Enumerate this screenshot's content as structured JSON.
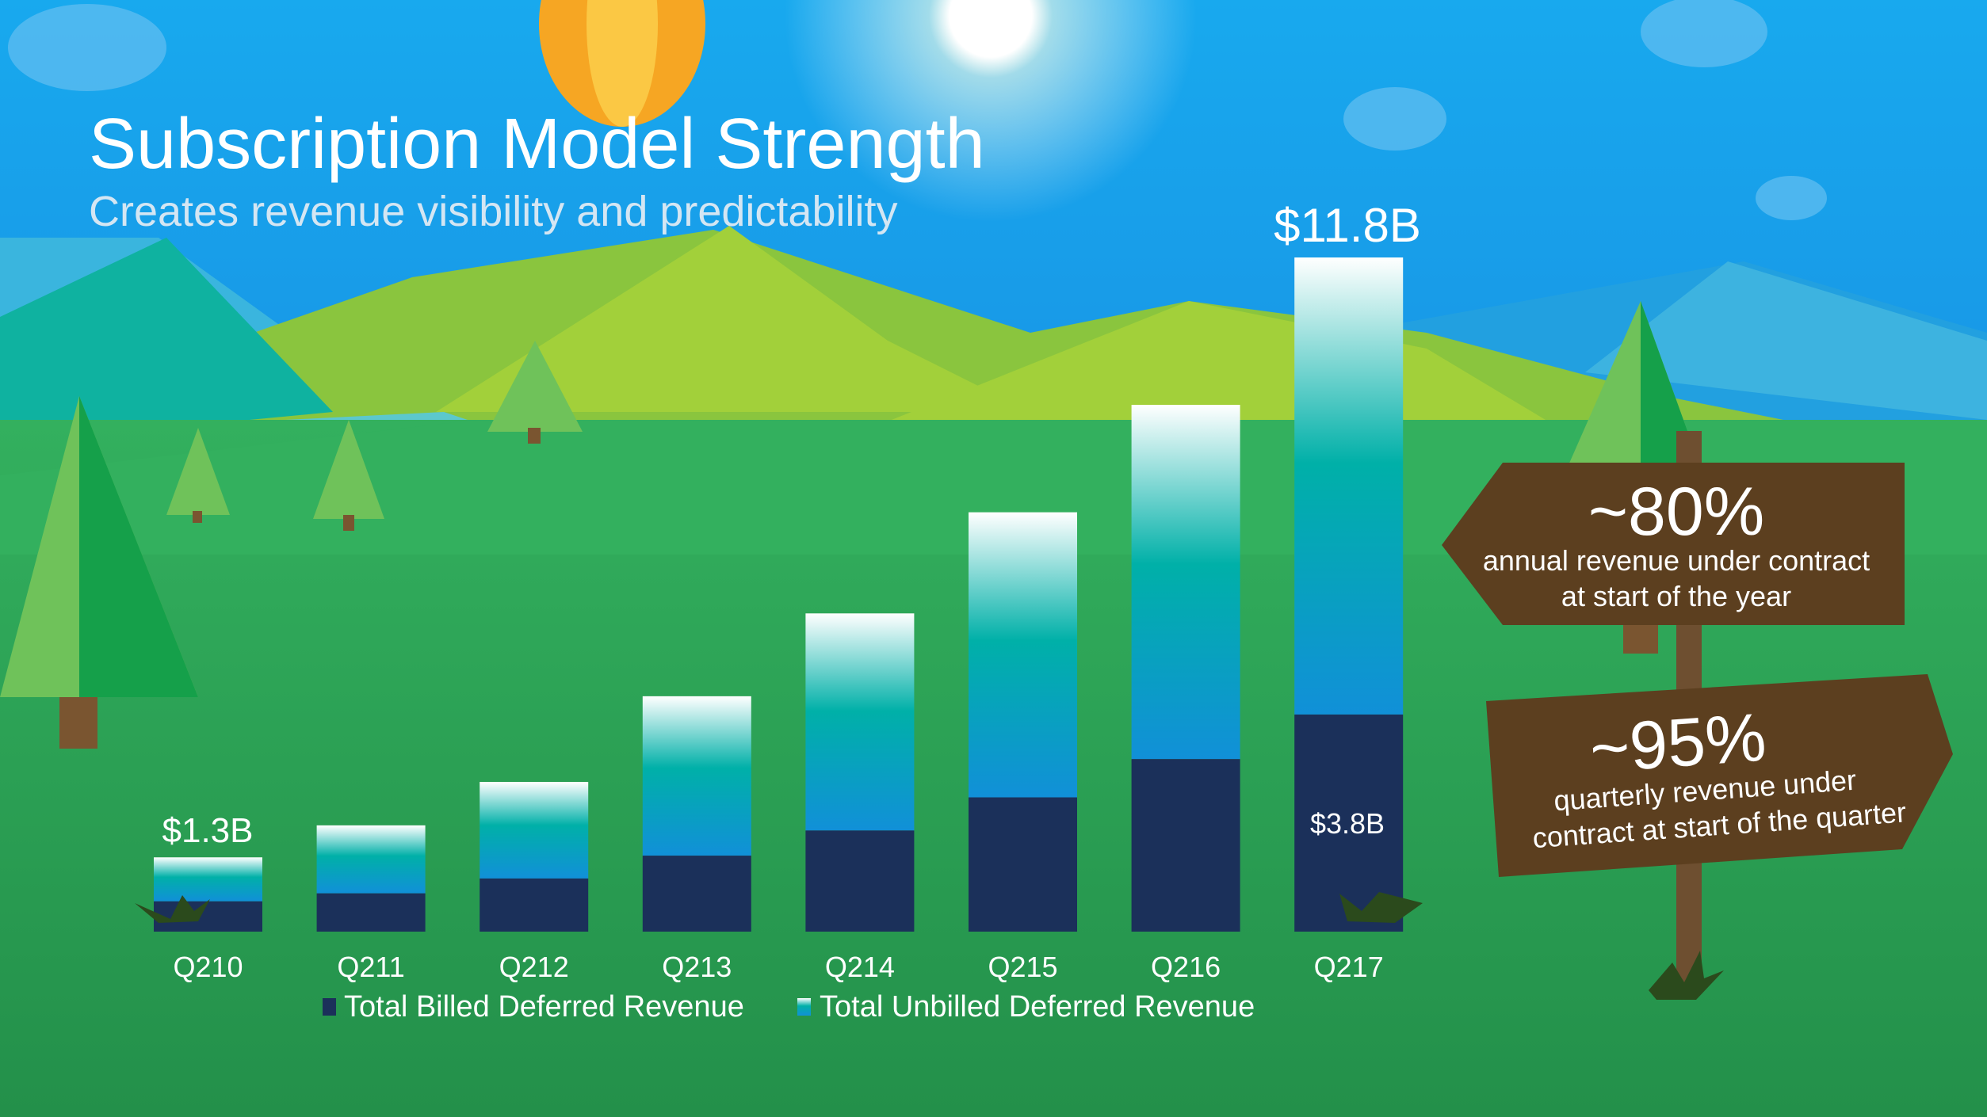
{
  "slide": {
    "title": "Subscription Model Strength",
    "subtitle": "Creates revenue visibility and predictability"
  },
  "chart_data": {
    "type": "bar",
    "stacked": true,
    "categories": [
      "Q210",
      "Q211",
      "Q212",
      "Q213",
      "Q214",
      "Q215",
      "Q216",
      "Q217"
    ],
    "series": [
      {
        "name": "Total Billed Deferred Revenue",
        "values": [
          0.53,
          0.67,
          0.93,
          1.33,
          1.77,
          2.35,
          3.02,
          3.8
        ]
      },
      {
        "name": "Total Unbilled Deferred Revenue",
        "values": [
          0.77,
          1.19,
          1.69,
          2.79,
          3.8,
          4.99,
          6.2,
          8.0
        ]
      }
    ],
    "units": "$B",
    "ylim": [
      0,
      11.8
    ],
    "grid": false,
    "legend": "bottom",
    "data_labels": {
      "first_total": "$1.3B",
      "last_total": "$11.8B",
      "last_billed": "$3.8B"
    },
    "colors": {
      "billed": "#1b305a",
      "unbilled_top": "#ffffff",
      "unbilled_mid": "#00b0a8",
      "unbilled_bottom": "#1190d8"
    }
  },
  "signs": [
    {
      "value": "~80%",
      "lines": [
        "annual revenue under contract",
        "at start of the year"
      ]
    },
    {
      "value": "~95%",
      "lines": [
        "quarterly revenue under",
        "contract at start of the quarter"
      ]
    }
  ],
  "colors": {
    "sky": "#1a8ee0",
    "ground": "#2fa85a",
    "sign": "#5c3f1f"
  }
}
